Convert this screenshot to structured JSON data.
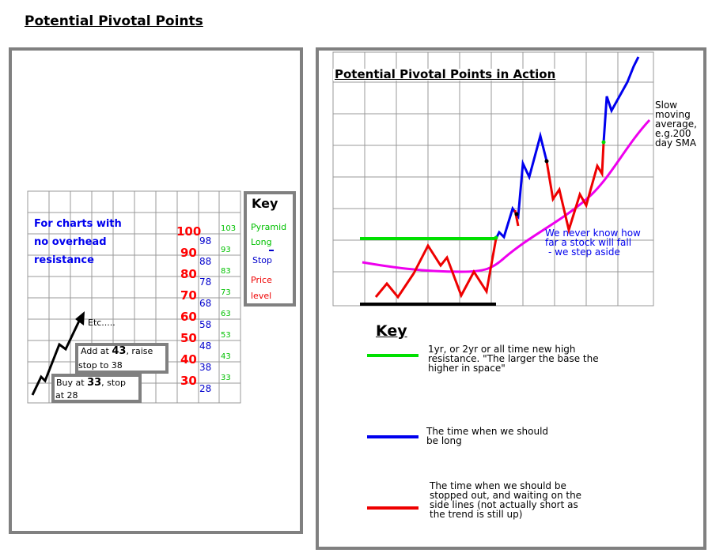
{
  "page_title": "Potential Pivotal Points",
  "left_panel": {
    "intro": [
      "For charts with",
      "no overhead",
      "resistance"
    ],
    "price_levels": [
      "100",
      "90",
      "80",
      "70",
      "60",
      "50",
      "40",
      "30"
    ],
    "stop_levels": [
      "98",
      "88",
      "78",
      "68",
      "58",
      "48",
      "38",
      "28"
    ],
    "pyramid_levels": [
      "103",
      "93",
      "83",
      "73",
      "63",
      "53",
      "43",
      "33"
    ],
    "etc_label": "Etc.....",
    "add_box": {
      "prefix": "Add at ",
      "price": "43",
      "suffix": ", raise",
      "line2": "stop to 38"
    },
    "buy_box": {
      "prefix": "Buy at ",
      "price": "33",
      "suffix": ", stop",
      "line2": "at 28"
    },
    "key": {
      "title": "Key",
      "pyramid_long": [
        "Pyramid",
        "Long"
      ],
      "stop": "Stop",
      "price_level": [
        "Price",
        "level"
      ]
    },
    "colors": {
      "price": "#ff0000",
      "stop": "#0000cc",
      "pyramid": "#00c000",
      "intro": "#0000ee"
    }
  },
  "right_panel": {
    "chart_title": "Potential Pivotal Points in Action",
    "sma_label": [
      "Slow",
      "moving",
      "average,",
      "e.g.200",
      "day SMA"
    ],
    "annotation": [
      "We never know how",
      "far a stock will fall",
      "- we step aside"
    ],
    "key_title": "Key",
    "key_items": [
      {
        "color": "#00e000",
        "lines": [
          "1yr, or 2yr or all time new high",
          "resistance. \"The larger the base the",
          "higher in space\""
        ]
      },
      {
        "color": "#0000ee",
        "lines": [
          "The time when we should",
          "be long"
        ]
      },
      {
        "color": "#ee0000",
        "lines": [
          "The time when we should be",
          "stopped out, and waiting on the",
          "side lines (not actually short as",
          "the trend is still up)"
        ]
      }
    ],
    "colors": {
      "resistance": "#00e000",
      "long": "#0000ee",
      "stopped": "#ee0000",
      "sma": "#ee00ee",
      "base": "#000000"
    }
  }
}
